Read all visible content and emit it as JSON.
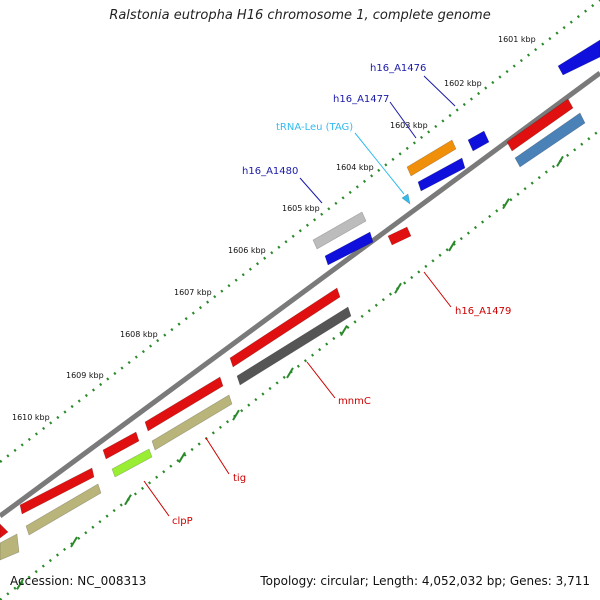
{
  "title": "Ralstonia eutropha H16 chromosome 1, complete genome",
  "footer": {
    "accession": "Accession: NC_008313",
    "topology": "Topology: circular; Length: 4,052,032 bp; Genes: 3,711"
  },
  "colors": {
    "backbone": "#7a7a7a",
    "ticks": "#2a8a2a",
    "red": "#e01010",
    "blue": "#1010dd",
    "orange": "#f0900a",
    "steelblue": "#4a82b8",
    "gray": "#bcbcbc",
    "darkgray": "#555555",
    "khaki": "#b8b47a",
    "lime": "#99ee33",
    "cyan": "#33bbee",
    "label_red": "#cc0000",
    "label_blue": "#1a1aaa",
    "label_cyan": "#33bbee"
  },
  "ticks": [
    "1601 kbp",
    "1602 kbp",
    "1603 kbp",
    "1604 kbp",
    "1605 kbp",
    "1606 kbp",
    "1607 kbp",
    "1608 kbp",
    "1609 kbp",
    "1610 kbp"
  ],
  "features": [
    {
      "id": "gene-a",
      "color": "red"
    },
    {
      "id": "gene-b",
      "color": "red"
    },
    {
      "id": "gene-c",
      "color": "red"
    },
    {
      "id": "gene-tig",
      "color": "red"
    },
    {
      "id": "gene-mnmC",
      "color": "red"
    },
    {
      "id": "gene-h16-A1479",
      "color": "red"
    },
    {
      "id": "gene-clpP",
      "color": "lime"
    },
    {
      "id": "gene-khaki-1",
      "color": "khaki"
    },
    {
      "id": "gene-khaki-2",
      "color": "khaki"
    },
    {
      "id": "gene-darkgray",
      "color": "darkgray"
    },
    {
      "id": "gene-h16-A1480",
      "color": "blue"
    },
    {
      "id": "gene-gray",
      "color": "gray"
    },
    {
      "id": "gene-h16-A1477",
      "color": "blue"
    },
    {
      "id": "gene-h16-A1476",
      "color": "blue"
    },
    {
      "id": "gene-orange",
      "color": "orange"
    },
    {
      "id": "gene-top-blue",
      "color": "blue"
    },
    {
      "id": "gene-top-red",
      "color": "red"
    },
    {
      "id": "gene-steelblue",
      "color": "steelblue"
    },
    {
      "id": "trna-leu",
      "color": "cyan"
    }
  ],
  "labels": {
    "h16_A1476": "h16_A1476",
    "h16_A1477": "h16_A1477",
    "trna_leu": "tRNA-Leu (TAG)",
    "h16_A1480": "h16_A1480",
    "h16_A1479": "h16_A1479",
    "mnmC": "mnmC",
    "tig": "tig",
    "clpP": "clpP"
  }
}
